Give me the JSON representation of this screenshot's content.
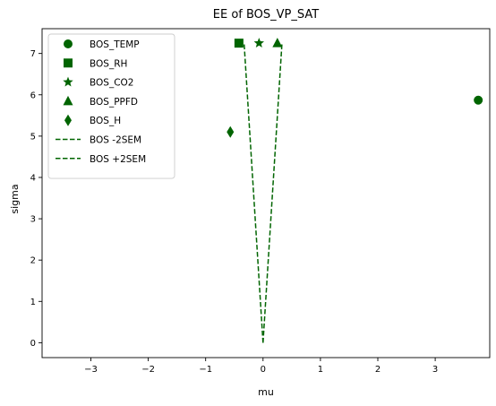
{
  "chart_data": {
    "type": "scatter",
    "title": "EE of BOS_VP_SAT",
    "xlabel": "mu",
    "ylabel": "sigma",
    "xlim": [
      -3.85,
      3.95
    ],
    "ylim": [
      -0.36,
      7.6
    ],
    "xticks": [
      -3,
      -2,
      -1,
      0,
      1,
      2,
      3
    ],
    "yticks": [
      0,
      1,
      2,
      3,
      4,
      5,
      6,
      7
    ],
    "xtick_labels": [
      "−3",
      "−2",
      "−1",
      "0",
      "1",
      "2",
      "3"
    ],
    "ytick_labels": [
      "0",
      "1",
      "2",
      "3",
      "4",
      "5",
      "6",
      "7"
    ],
    "grid": false,
    "legend_position": "top-left",
    "color": "#006400",
    "series": [
      {
        "name": "BOS_TEMP",
        "kind": "point",
        "marker": "circle",
        "points": [
          {
            "x": 3.75,
            "y": 5.87
          }
        ]
      },
      {
        "name": "BOS_RH",
        "kind": "point",
        "marker": "square",
        "points": [
          {
            "x": -0.42,
            "y": 7.25
          }
        ]
      },
      {
        "name": "BOS_CO2",
        "kind": "point",
        "marker": "star",
        "points": [
          {
            "x": -0.07,
            "y": 7.25
          }
        ]
      },
      {
        "name": "BOS_PPFD",
        "kind": "point",
        "marker": "triangle",
        "points": [
          {
            "x": 0.25,
            "y": 7.25
          }
        ]
      },
      {
        "name": "BOS_H",
        "kind": "point",
        "marker": "diamond",
        "points": [
          {
            "x": -0.57,
            "y": 5.1
          }
        ]
      },
      {
        "name": "BOS -2SEM",
        "kind": "line",
        "style": "dashed",
        "points": [
          {
            "x": 0,
            "y": 0
          },
          {
            "x": -0.33,
            "y": 7.25
          }
        ]
      },
      {
        "name": "BOS +2SEM",
        "kind": "line",
        "style": "dashed",
        "points": [
          {
            "x": 0,
            "y": 0
          },
          {
            "x": 0.33,
            "y": 7.25
          }
        ]
      }
    ]
  }
}
